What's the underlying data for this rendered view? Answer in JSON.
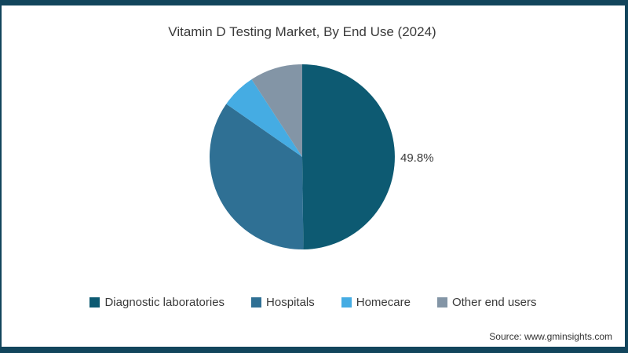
{
  "title": "Vitamin D Testing Market, By End Use (2024)",
  "source": "Source: www.gminsights.com",
  "colors": {
    "frame": "#12455C",
    "text": "#3A3A3A"
  },
  "chart_data": {
    "type": "pie",
    "title": "Vitamin D Testing Market, By End Use (2024)",
    "unit": "%",
    "direction": "clockwise",
    "start_angle_deg": 0,
    "legend_position": "bottom",
    "slices": [
      {
        "label": "Diagnostic laboratories",
        "value": 49.8,
        "color": "#0D5A72",
        "data_label": "49.8%"
      },
      {
        "label": "Hospitals",
        "value": 34.9,
        "color": "#2F7094",
        "data_label": ""
      },
      {
        "label": "Homecare",
        "value": 6.1,
        "color": "#45ACE3",
        "data_label": ""
      },
      {
        "label": "Other end users",
        "value": 9.2,
        "color": "#8395A6",
        "data_label": ""
      }
    ]
  }
}
